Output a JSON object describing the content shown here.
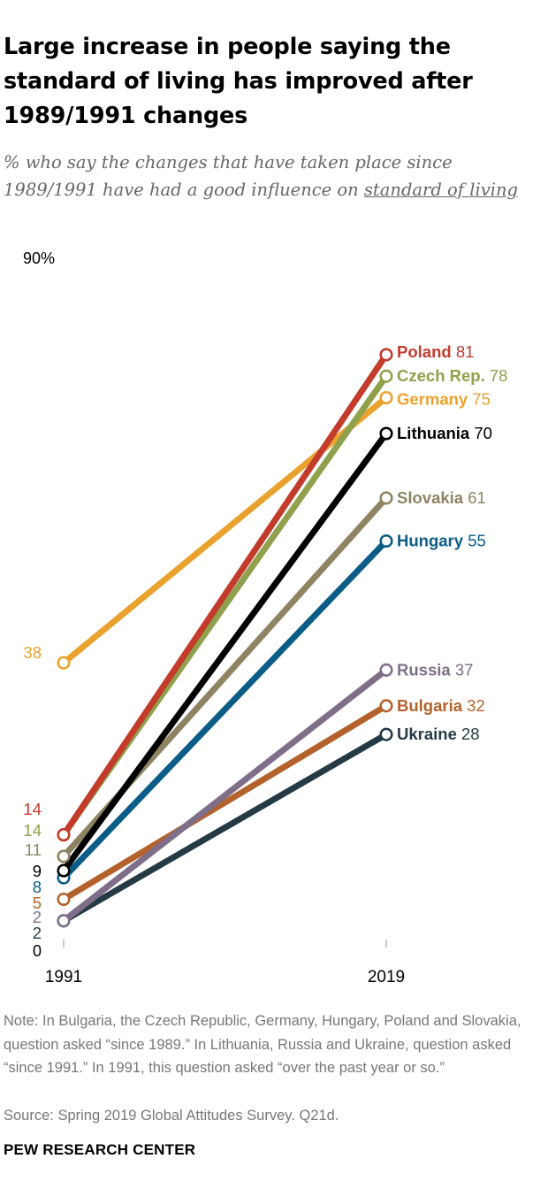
{
  "title": "Large increase in people saying the standard of living has improved after 1989/1991 changes",
  "subtitle": {
    "before": "% who say the changes that have taken place since 1989/1991 have had a good influence on ",
    "underlined": "standard of living"
  },
  "note": "Note: In Bulgaria, the Czech Republic, Germany, Hungary, Poland and Slovakia, question asked “since 1989.” In Lithuania, Russia and Ukraine, question asked “since 1991.” In 1991, this question asked “over the past year or so.”",
  "source": "Source: Spring 2019 Global Attitudes Survey. Q21d.",
  "brand": "PEW RESEARCH CENTER",
  "chart_data": {
    "type": "line",
    "title": "Large increase in people saying the standard of living has improved after 1989/1991 changes",
    "x": [
      "1991",
      "2019"
    ],
    "ylim": [
      0,
      90
    ],
    "y_top_label": "90%",
    "y_bottom_label": "0",
    "series": [
      {
        "name": "Germany",
        "values": [
          38,
          75
        ],
        "color": "#EAA22F"
      },
      {
        "name": "Ukraine",
        "values": [
          2,
          28
        ],
        "color": "#253A45"
      },
      {
        "name": "Bulgaria",
        "values": [
          5,
          32
        ],
        "color": "#B4622B"
      },
      {
        "name": "Russia",
        "values": [
          2,
          37
        ],
        "color": "#7F6E88"
      },
      {
        "name": "Hungary",
        "values": [
          8,
          55
        ],
        "color": "#0B5C86"
      },
      {
        "name": "Slovakia",
        "values": [
          11,
          61
        ],
        "color": "#8E8463"
      },
      {
        "name": "Lithuania",
        "values": [
          9,
          70
        ],
        "color": "#000000"
      },
      {
        "name": "Czech Rep.",
        "values": [
          14,
          78
        ],
        "color": "#8FA14C"
      },
      {
        "name": "Poland",
        "values": [
          14,
          81
        ],
        "color": "#C23B2B"
      }
    ],
    "left_labels": [
      {
        "text": "38",
        "color": "#EAA22F"
      },
      {
        "text": "14",
        "color": "#C23B2B"
      },
      {
        "text": "14",
        "color": "#8FA14C"
      },
      {
        "text": "11",
        "color": "#8E8463"
      },
      {
        "text": "9",
        "color": "#000000"
      },
      {
        "text": "8",
        "color": "#0B5C86"
      },
      {
        "text": "5",
        "color": "#B4622B"
      },
      {
        "text": "2",
        "color": "#7F6E88"
      },
      {
        "text": "2",
        "color": "#253A45"
      }
    ]
  }
}
